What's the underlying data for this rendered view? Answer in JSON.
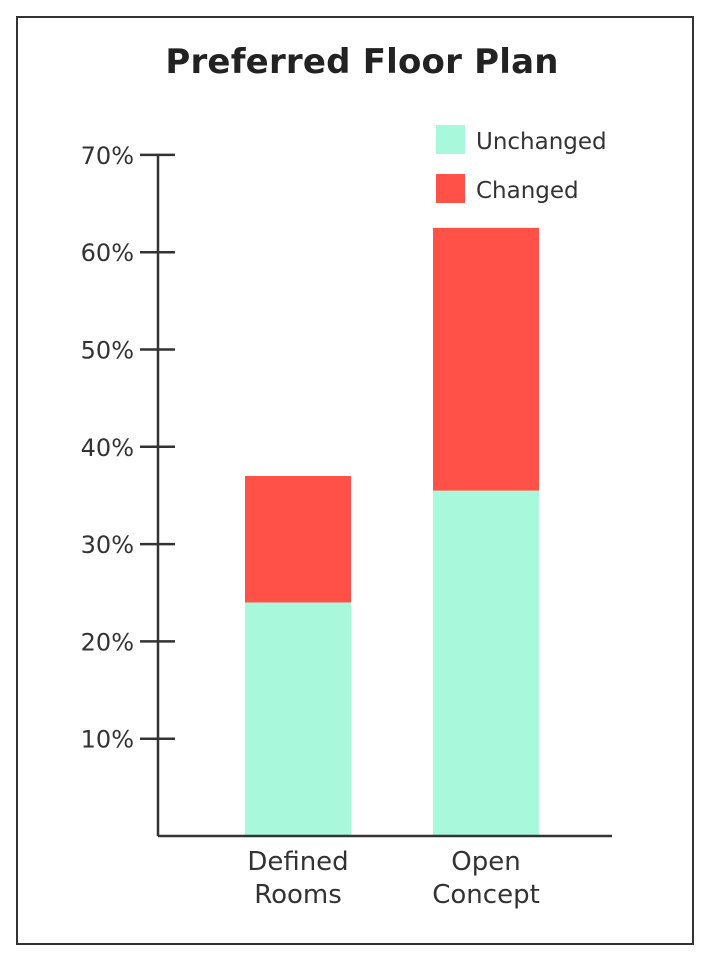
{
  "chart_data": {
    "type": "bar",
    "stacked": true,
    "title": "Preferred Floor Plan",
    "xlabel": "",
    "ylabel": "",
    "categories": [
      [
        "Defined",
        "Rooms"
      ],
      [
        "Open",
        "Concept"
      ]
    ],
    "series": [
      {
        "name": "Unchanged",
        "color": "#a8f9dc",
        "values": [
          24,
          35.5
        ]
      },
      {
        "name": "Changed",
        "color": "#ff5147",
        "values": [
          13,
          27
        ]
      }
    ],
    "ylim": [
      0,
      70
    ],
    "yticks": [
      10,
      20,
      30,
      40,
      50,
      60,
      70
    ],
    "ytick_labels": [
      "10%",
      "20%",
      "30%",
      "40%",
      "50%",
      "60%",
      "70%"
    ],
    "legend_position": "top-right",
    "grid": false
  }
}
